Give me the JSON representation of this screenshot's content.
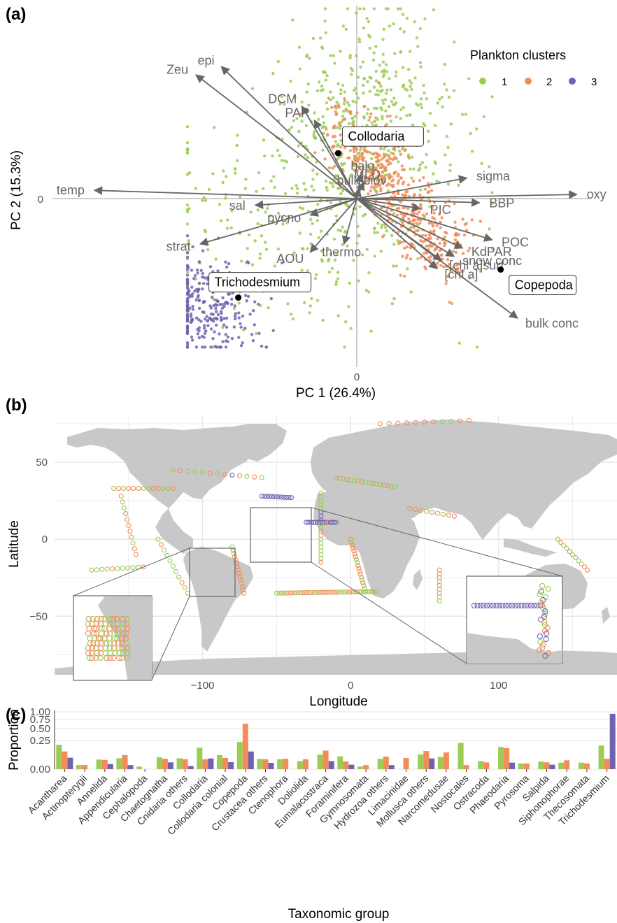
{
  "colors": {
    "c1": "#9ACD52",
    "c2": "#F58B58",
    "c3": "#7161B0",
    "vector": "#666666",
    "land": "#C8C8C8",
    "grid": "#E6E6E6"
  },
  "panels": {
    "a": "(a)",
    "b": "(b)",
    "c": "(c)"
  },
  "legend": {
    "title": "Plankton clusters",
    "items": [
      "1",
      "2",
      "3"
    ]
  },
  "chart_data": [
    {
      "type": "scatter",
      "panel": "(a)",
      "xlabel": "PC 1 (26.4%)",
      "ylabel": "PC 2 (15.3%)",
      "xlim": [
        -3.5,
        2.8
      ],
      "ylim": [
        -1.9,
        2.4
      ],
      "xticks": [
        {
          "v": 0,
          "label": "0"
        }
      ],
      "yticks": [
        {
          "v": 0,
          "label": "0"
        }
      ],
      "vectors": [
        {
          "name": "epi",
          "x": -1.6,
          "y": 1.6
        },
        {
          "name": "Zeu",
          "x": -1.9,
          "y": 1.5
        },
        {
          "name": "DCM",
          "x": -0.65,
          "y": 1.12
        },
        {
          "name": "PAR",
          "x": -0.5,
          "y": 0.95
        },
        {
          "name": "halo",
          "x": 0.05,
          "y": 0.3
        },
        {
          "name": "MLD",
          "x": 0.08,
          "y": 0.2
        },
        {
          "name": "bulk biov",
          "x": 0.03,
          "y": 0.12
        },
        {
          "name": "sigma",
          "x": 1.3,
          "y": 0.25
        },
        {
          "name": "oxy",
          "x": 2.6,
          "y": 0.05
        },
        {
          "name": "BBP",
          "x": 1.45,
          "y": -0.05
        },
        {
          "name": "PIC",
          "x": 0.75,
          "y": -0.12
        },
        {
          "name": "POC",
          "x": 1.6,
          "y": -0.5
        },
        {
          "name": "KdPAR",
          "x": 1.25,
          "y": -0.6
        },
        {
          "name": "snow conc",
          "x": 1.15,
          "y": -0.7
        },
        {
          "name": "[chl a]surf",
          "x": 1.0,
          "y": -0.75
        },
        {
          "name": "[chl a]",
          "x": 0.95,
          "y": -0.85
        },
        {
          "name": "bulk conc",
          "x": 1.9,
          "y": -1.45
        },
        {
          "name": "thermo",
          "x": -0.15,
          "y": -0.55
        },
        {
          "name": "pycno",
          "x": -0.55,
          "y": -0.2
        },
        {
          "name": "AOU",
          "x": -0.55,
          "y": -0.65
        },
        {
          "name": "sal",
          "x": -1.2,
          "y": -0.08
        },
        {
          "name": "temp",
          "x": -3.1,
          "y": 0.1
        },
        {
          "name": "strat",
          "x": -1.85,
          "y": -0.55
        }
      ],
      "taxa": [
        {
          "name": "Collodaria",
          "x": -0.22,
          "y": 0.55
        },
        {
          "name": "Trichodesmium",
          "x": -1.4,
          "y": -1.2
        },
        {
          "name": "Copepoda",
          "x": 1.7,
          "y": -0.86
        }
      ],
      "clusters": [
        {
          "cluster": "1",
          "color": "#9ACD52",
          "n": 750
        },
        {
          "cluster": "2",
          "color": "#F58B58",
          "n": 480
        },
        {
          "cluster": "3",
          "color": "#7161B0",
          "n": 260
        }
      ]
    },
    {
      "type": "scatter",
      "panel": "(b)",
      "xlabel": "Longitude",
      "ylabel": "Latitude",
      "xlim": [
        -200,
        180
      ],
      "ylim": [
        -88,
        80
      ],
      "xticks": [
        {
          "v": -100,
          "label": "−100"
        },
        {
          "v": 0,
          "label": "0"
        },
        {
          "v": 100,
          "label": "100"
        }
      ],
      "yticks": [
        {
          "v": 50,
          "label": "50"
        },
        {
          "v": 0,
          "label": "0"
        },
        {
          "v": -50,
          "label": "−50"
        }
      ]
    },
    {
      "type": "bar",
      "panel": "(c)",
      "xlabel": "Taxonomic group",
      "ylabel": "Proportion",
      "yscale": "sqrt",
      "ylim": [
        0,
        1.0
      ],
      "yticks": [
        "0.00",
        "0.25",
        "0.50",
        "0.75",
        "1.00"
      ],
      "categories": [
        "Acantharea",
        "Actinopterygii",
        "Annelida",
        "Appendicularia",
        "Cephalopoda",
        "Chaetognatha",
        "Cnidaria others",
        "Collodaria",
        "Collodaria colonial",
        "Copepoda",
        "Crustacea others",
        "Ctenophora",
        "Doliolida",
        "Eumalacostraca",
        "Foraminifera",
        "Gymnosomata",
        "Hydrozoa others",
        "Limacinidae",
        "Mollusca others",
        "Narcomedusae",
        "Nostocales",
        "Ostracoda",
        "Phaeodaria",
        "Pyrosoma",
        "Salpida",
        "Siphonophorae",
        "Thecosomata",
        "Trichodesmium"
      ],
      "series": [
        {
          "name": "1",
          "values": [
            0.18,
            0.005,
            0.028,
            0.036,
            0.002,
            0.043,
            0.036,
            0.14,
            0.06,
            0.225,
            0.032,
            0.03,
            0.02,
            0.065,
            0.05,
            0.002,
            0.032,
            0.0,
            0.065,
            0.045,
            0.21,
            0.02,
            0.15,
            0.01,
            0.018,
            0.013,
            0.013,
            0.17
          ]
        },
        {
          "name": "2",
          "values": [
            0.095,
            0.005,
            0.026,
            0.06,
            0.0,
            0.033,
            0.03,
            0.03,
            0.038,
            0.63,
            0.03,
            0.033,
            0.03,
            0.105,
            0.018,
            0.005,
            0.048,
            0.038,
            0.1,
            0.085,
            0.005,
            0.014,
            0.135,
            0.01,
            0.014,
            0.024,
            0.01,
            0.033
          ]
        },
        {
          "name": "3",
          "values": [
            0.04,
            0.0,
            0.008,
            0.005,
            0.0,
            0.014,
            0.003,
            0.035,
            0.015,
            0.095,
            0.012,
            0.0,
            0.0,
            0.02,
            0.006,
            0.0,
            0.005,
            0.0,
            0.035,
            0.0,
            0.0,
            0.0,
            0.013,
            0.0,
            0.006,
            0.0,
            0.0,
            0.93
          ]
        }
      ]
    }
  ]
}
